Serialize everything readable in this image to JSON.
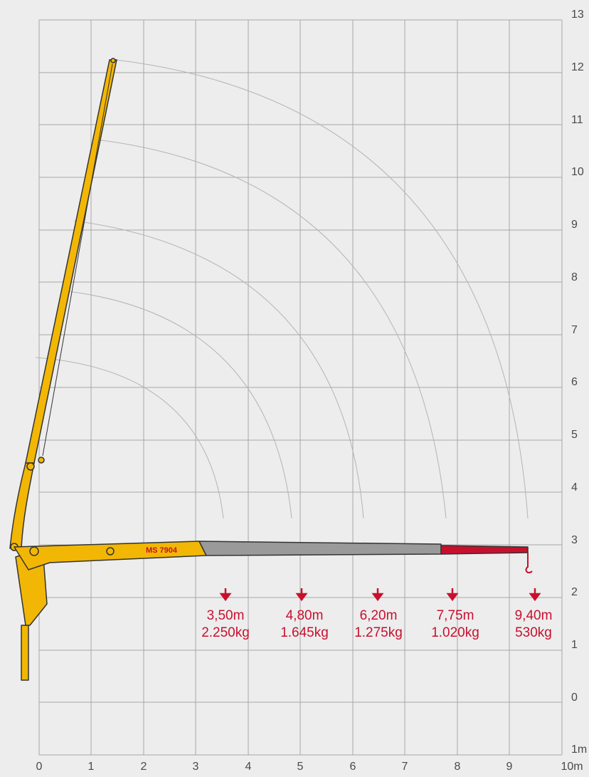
{
  "diagram": {
    "model_label": "MS 7904",
    "x_ticks": [
      "0",
      "1",
      "2",
      "3",
      "4",
      "5",
      "6",
      "7",
      "8",
      "9",
      "10m"
    ],
    "y_ticks": [
      "1m",
      "0",
      "1",
      "2",
      "3",
      "4",
      "5",
      "6",
      "7",
      "8",
      "9",
      "10",
      "11",
      "12",
      "13"
    ],
    "capacities": [
      {
        "reach": "3,50m",
        "load": "2.250kg"
      },
      {
        "reach": "4,80m",
        "load": "1.645kg"
      },
      {
        "reach": "6,20m",
        "load": "1.275kg"
      },
      {
        "reach": "7,75m",
        "load": "1.020kg"
      },
      {
        "reach": "9,40m",
        "load": "530kg"
      }
    ],
    "colors": {
      "background": "#ededed",
      "grid": "#a8a8a8",
      "arc": "#b4b4b4",
      "boom_yellow": "#f2b705",
      "extension_grey": "#9a9a9a",
      "jib_red": "#c8102e",
      "capacity_red": "#c8102e",
      "tick_text": "#4a4a4a"
    }
  }
}
